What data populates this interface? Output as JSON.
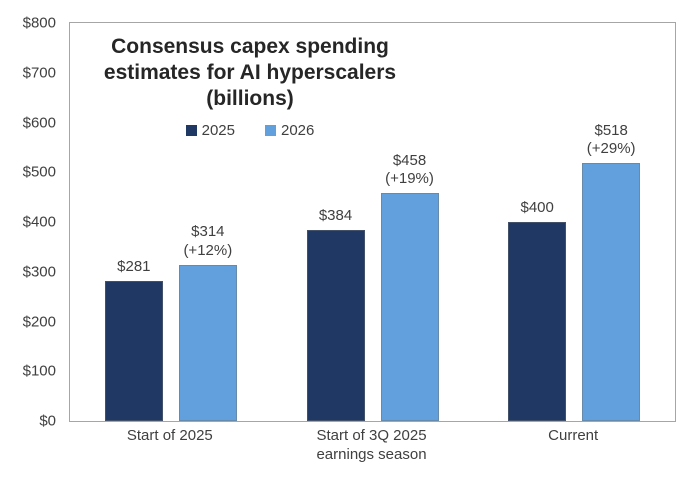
{
  "title": {
    "lines": [
      "Consensus capex spending",
      "estimates for AI hyperscalers",
      "(billions)"
    ]
  },
  "colors": {
    "series_2025": "#1F3864",
    "series_2026": "#61A0DC",
    "plot_border": "#A6A6A6",
    "label_text": "#404040",
    "title_text": "#262626"
  },
  "chart_data": {
    "type": "bar",
    "title": "Consensus capex spending estimates for AI hyperscalers (billions)",
    "categories": [
      "Start of 2025",
      "Start of 3Q 2025 earnings season",
      "Current"
    ],
    "category_label_lines": [
      [
        "Start of 2025"
      ],
      [
        "Start of 3Q 2025",
        "earnings season"
      ],
      [
        "Current"
      ]
    ],
    "series": [
      {
        "name": "2025",
        "color": "#1F3864",
        "values": [
          281,
          384,
          400
        ],
        "data_labels": [
          [
            "$281"
          ],
          [
            "$384"
          ],
          [
            "$400"
          ]
        ]
      },
      {
        "name": "2026",
        "color": "#61A0DC",
        "values": [
          314,
          458,
          518
        ],
        "data_labels": [
          [
            "$314",
            "(+12%)"
          ],
          [
            "$458",
            "(+19%)"
          ],
          [
            "$518",
            "(+29%)"
          ]
        ]
      }
    ],
    "xlabel": "",
    "ylabel": "",
    "ylim": [
      0,
      800
    ],
    "y_tick_values": [
      800,
      700,
      600,
      500,
      400,
      300,
      200,
      100,
      0
    ],
    "y_tick_labels": [
      "$800",
      "$700",
      "$600",
      "$500",
      "$400",
      "$300",
      "$200",
      "$100",
      "$0"
    ],
    "grid": false,
    "legend_position": "top-center",
    "legend": [
      "2025",
      "2026"
    ]
  }
}
